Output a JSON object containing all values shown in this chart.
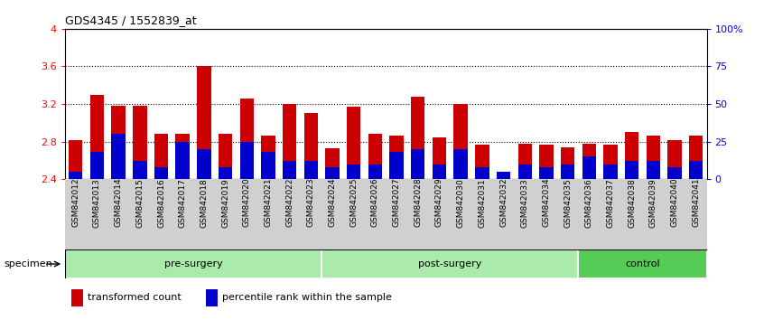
{
  "title": "GDS4345 / 1552839_at",
  "specimens": [
    "GSM842012",
    "GSM842013",
    "GSM842014",
    "GSM842015",
    "GSM842016",
    "GSM842017",
    "GSM842018",
    "GSM842019",
    "GSM842020",
    "GSM842021",
    "GSM842022",
    "GSM842023",
    "GSM842024",
    "GSM842025",
    "GSM842026",
    "GSM842027",
    "GSM842028",
    "GSM842029",
    "GSM842030",
    "GSM842031",
    "GSM842032",
    "GSM842033",
    "GSM842034",
    "GSM842035",
    "GSM842036",
    "GSM842037",
    "GSM842038",
    "GSM842039",
    "GSM842040",
    "GSM842041"
  ],
  "transformed_count": [
    2.82,
    3.3,
    3.18,
    3.18,
    2.88,
    2.88,
    3.6,
    2.88,
    3.26,
    2.86,
    3.2,
    3.1,
    2.73,
    3.17,
    2.88,
    2.86,
    3.28,
    2.84,
    3.2,
    2.77,
    2.44,
    2.78,
    2.77,
    2.74,
    2.78,
    2.77,
    2.9,
    2.86,
    2.82,
    2.86
  ],
  "percentile_rank_pct": [
    5,
    18,
    30,
    12,
    8,
    25,
    20,
    8,
    25,
    18,
    12,
    12,
    8,
    10,
    10,
    18,
    20,
    10,
    20,
    8,
    5,
    10,
    8,
    10,
    15,
    10,
    12,
    12,
    8,
    12
  ],
  "ylim_left": [
    2.4,
    4.0
  ],
  "ylim_right": [
    0,
    100
  ],
  "yticks_left": [
    2.4,
    2.8,
    3.2,
    3.6,
    4.0
  ],
  "yticks_right": [
    0,
    25,
    50,
    75,
    100
  ],
  "ytick_labels_left": [
    "2.4",
    "2.8",
    "3.2",
    "3.6",
    "4"
  ],
  "ytick_labels_right": [
    "0",
    "25",
    "50",
    "75",
    "100%"
  ],
  "bar_color_red": "#cc0000",
  "bar_color_blue": "#0000cc",
  "groups": [
    {
      "label": "pre-surgery",
      "start": 0,
      "end": 12,
      "color": "#aaeaaa"
    },
    {
      "label": "post-surgery",
      "start": 12,
      "end": 24,
      "color": "#aaeaaa"
    },
    {
      "label": "control",
      "start": 24,
      "end": 30,
      "color": "#55cc55"
    }
  ],
  "specimen_label": "specimen",
  "legend_items": [
    {
      "label": "transformed count",
      "color": "#cc0000"
    },
    {
      "label": "percentile rank within the sample",
      "color": "#0000cc"
    }
  ],
  "base_value": 2.4,
  "bar_width": 0.65
}
